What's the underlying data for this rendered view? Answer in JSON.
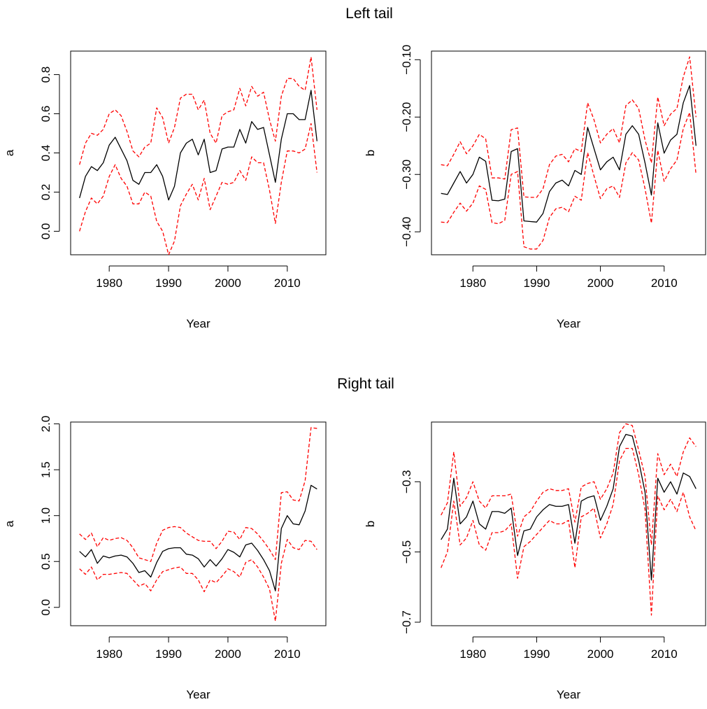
{
  "titles": {
    "top": "Left tail",
    "bottom": "Right tail"
  },
  "chart_data": [
    {
      "type": "line",
      "row_title": "Left tail",
      "xlabel": "Year",
      "ylabel": "a",
      "xlim": [
        1973.5,
        2016.5
      ],
      "ylim": [
        -0.12,
        0.92
      ],
      "xticks": [
        1980,
        1990,
        2000,
        2010
      ],
      "yticks": [
        0.0,
        0.2,
        0.4,
        0.6,
        0.8
      ],
      "ytick_labels": [
        "0.0",
        "0.2",
        "0.4",
        "0.6",
        "0.8"
      ],
      "x": [
        1975,
        1976,
        1977,
        1978,
        1979,
        1980,
        1981,
        1982,
        1983,
        1984,
        1985,
        1986,
        1987,
        1988,
        1989,
        1990,
        1991,
        1992,
        1993,
        1994,
        1995,
        1996,
        1997,
        1998,
        1999,
        2000,
        2001,
        2002,
        2003,
        2004,
        2005,
        2006,
        2007,
        2008,
        2009,
        2010,
        2011,
        2012,
        2013,
        2014,
        2015
      ],
      "series": [
        {
          "role": "estimate",
          "color": "#000000",
          "dash": "solid",
          "values": [
            0.17,
            0.28,
            0.33,
            0.31,
            0.35,
            0.44,
            0.48,
            0.42,
            0.36,
            0.26,
            0.24,
            0.3,
            0.3,
            0.34,
            0.28,
            0.16,
            0.23,
            0.4,
            0.45,
            0.47,
            0.39,
            0.47,
            0.3,
            0.31,
            0.42,
            0.43,
            0.43,
            0.52,
            0.45,
            0.56,
            0.52,
            0.53,
            0.39,
            0.25,
            0.47,
            0.6,
            0.6,
            0.57,
            0.57,
            0.72,
            0.46
          ]
        },
        {
          "role": "upper",
          "color": "#ff0000",
          "dash": "dashed",
          "values": [
            0.34,
            0.45,
            0.5,
            0.49,
            0.52,
            0.6,
            0.62,
            0.59,
            0.51,
            0.41,
            0.38,
            0.43,
            0.45,
            0.63,
            0.58,
            0.45,
            0.53,
            0.68,
            0.7,
            0.7,
            0.62,
            0.67,
            0.5,
            0.45,
            0.59,
            0.61,
            0.62,
            0.73,
            0.64,
            0.74,
            0.69,
            0.71,
            0.57,
            0.46,
            0.69,
            0.78,
            0.78,
            0.74,
            0.72,
            0.89,
            0.62
          ]
        },
        {
          "role": "lower",
          "color": "#ff0000",
          "dash": "dashed",
          "values": [
            0.0,
            0.1,
            0.17,
            0.14,
            0.18,
            0.28,
            0.34,
            0.27,
            0.23,
            0.14,
            0.14,
            0.2,
            0.18,
            0.05,
            0.0,
            -0.12,
            -0.05,
            0.13,
            0.19,
            0.24,
            0.16,
            0.27,
            0.11,
            0.18,
            0.25,
            0.24,
            0.25,
            0.31,
            0.26,
            0.38,
            0.35,
            0.35,
            0.21,
            0.04,
            0.25,
            0.41,
            0.41,
            0.4,
            0.42,
            0.55,
            0.3
          ]
        }
      ]
    },
    {
      "type": "line",
      "row_title": "Left tail",
      "xlabel": "Year",
      "ylabel": "b",
      "xlim": [
        1973.5,
        2016.5
      ],
      "ylim": [
        -0.44,
        -0.085
      ],
      "xticks": [
        1980,
        1990,
        2000,
        2010
      ],
      "yticks": [
        -0.4,
        -0.3,
        -0.2,
        -0.1
      ],
      "ytick_labels": [
        "−0.40",
        "−0.30",
        "−0.20",
        "−0.10"
      ],
      "x": [
        1975,
        1976,
        1977,
        1978,
        1979,
        1980,
        1981,
        1982,
        1983,
        1984,
        1985,
        1986,
        1987,
        1988,
        1989,
        1990,
        1991,
        1992,
        1993,
        1994,
        1995,
        1996,
        1997,
        1998,
        1999,
        2000,
        2001,
        2002,
        2003,
        2004,
        2005,
        2006,
        2007,
        2008,
        2009,
        2010,
        2011,
        2012,
        2013,
        2014,
        2015
      ],
      "series": [
        {
          "role": "estimate",
          "color": "#000000",
          "dash": "solid",
          "values": [
            -0.333,
            -0.335,
            -0.315,
            -0.295,
            -0.315,
            -0.3,
            -0.27,
            -0.277,
            -0.345,
            -0.346,
            -0.343,
            -0.26,
            -0.255,
            -0.381,
            -0.382,
            -0.383,
            -0.368,
            -0.33,
            -0.315,
            -0.31,
            -0.32,
            -0.293,
            -0.3,
            -0.218,
            -0.255,
            -0.292,
            -0.278,
            -0.27,
            -0.292,
            -0.23,
            -0.215,
            -0.23,
            -0.28,
            -0.336,
            -0.21,
            -0.263,
            -0.24,
            -0.23,
            -0.175,
            -0.145,
            -0.25
          ]
        },
        {
          "role": "upper",
          "color": "#ff0000",
          "dash": "dashed",
          "values": [
            -0.283,
            -0.285,
            -0.265,
            -0.243,
            -0.264,
            -0.25,
            -0.23,
            -0.238,
            -0.306,
            -0.306,
            -0.308,
            -0.222,
            -0.219,
            -0.339,
            -0.34,
            -0.34,
            -0.325,
            -0.283,
            -0.268,
            -0.265,
            -0.278,
            -0.255,
            -0.26,
            -0.175,
            -0.205,
            -0.245,
            -0.23,
            -0.22,
            -0.245,
            -0.18,
            -0.17,
            -0.185,
            -0.24,
            -0.28,
            -0.165,
            -0.215,
            -0.195,
            -0.185,
            -0.13,
            -0.095,
            -0.2
          ]
        },
        {
          "role": "lower",
          "color": "#ff0000",
          "dash": "dashed",
          "values": [
            -0.383,
            -0.384,
            -0.366,
            -0.35,
            -0.364,
            -0.35,
            -0.32,
            -0.326,
            -0.384,
            -0.386,
            -0.38,
            -0.3,
            -0.295,
            -0.426,
            -0.43,
            -0.43,
            -0.415,
            -0.375,
            -0.36,
            -0.357,
            -0.365,
            -0.338,
            -0.345,
            -0.262,
            -0.303,
            -0.342,
            -0.325,
            -0.32,
            -0.34,
            -0.28,
            -0.262,
            -0.275,
            -0.325,
            -0.385,
            -0.258,
            -0.312,
            -0.29,
            -0.275,
            -0.22,
            -0.192,
            -0.3
          ]
        }
      ]
    },
    {
      "type": "line",
      "row_title": "Right tail",
      "xlabel": "Year",
      "ylabel": "a",
      "xlim": [
        1973.5,
        2016.5
      ],
      "ylim": [
        -0.2,
        2.02
      ],
      "xticks": [
        1980,
        1990,
        2000,
        2010
      ],
      "yticks": [
        0.0,
        0.5,
        1.0,
        1.5,
        2.0
      ],
      "ytick_labels": [
        "0.0",
        "0.5",
        "1.0",
        "1.5",
        "2.0"
      ],
      "x": [
        1975,
        1976,
        1977,
        1978,
        1979,
        1980,
        1981,
        1982,
        1983,
        1984,
        1985,
        1986,
        1987,
        1988,
        1989,
        1990,
        1991,
        1992,
        1993,
        1994,
        1995,
        1996,
        1997,
        1998,
        1999,
        2000,
        2001,
        2002,
        2003,
        2004,
        2005,
        2006,
        2007,
        2008,
        2009,
        2010,
        2011,
        2012,
        2013,
        2014,
        2015
      ],
      "series": [
        {
          "role": "estimate",
          "color": "#000000",
          "dash": "solid",
          "values": [
            0.61,
            0.55,
            0.63,
            0.48,
            0.56,
            0.54,
            0.56,
            0.57,
            0.55,
            0.48,
            0.38,
            0.4,
            0.33,
            0.49,
            0.61,
            0.64,
            0.65,
            0.65,
            0.58,
            0.57,
            0.53,
            0.44,
            0.52,
            0.45,
            0.53,
            0.63,
            0.6,
            0.55,
            0.68,
            0.7,
            0.62,
            0.52,
            0.4,
            0.18,
            0.86,
            1.0,
            0.91,
            0.9,
            1.05,
            1.33,
            1.29
          ]
        },
        {
          "role": "upper",
          "color": "#ff0000",
          "dash": "dashed",
          "values": [
            0.8,
            0.74,
            0.81,
            0.66,
            0.76,
            0.73,
            0.75,
            0.76,
            0.73,
            0.65,
            0.54,
            0.52,
            0.5,
            0.7,
            0.84,
            0.87,
            0.88,
            0.87,
            0.81,
            0.77,
            0.73,
            0.72,
            0.72,
            0.64,
            0.72,
            0.83,
            0.82,
            0.74,
            0.87,
            0.86,
            0.8,
            0.72,
            0.63,
            0.52,
            1.25,
            1.26,
            1.17,
            1.16,
            1.38,
            1.96,
            1.95
          ]
        },
        {
          "role": "lower",
          "color": "#ff0000",
          "dash": "dashed",
          "values": [
            0.42,
            0.36,
            0.44,
            0.3,
            0.36,
            0.36,
            0.37,
            0.38,
            0.37,
            0.3,
            0.23,
            0.26,
            0.18,
            0.3,
            0.39,
            0.41,
            0.43,
            0.44,
            0.37,
            0.37,
            0.3,
            0.17,
            0.3,
            0.27,
            0.34,
            0.42,
            0.39,
            0.33,
            0.49,
            0.52,
            0.44,
            0.33,
            0.2,
            -0.15,
            0.48,
            0.74,
            0.65,
            0.63,
            0.73,
            0.72,
            0.63
          ]
        }
      ]
    },
    {
      "type": "line",
      "row_title": "Right tail",
      "xlabel": "Year",
      "ylabel": "b",
      "xlim": [
        1973.5,
        2016.5
      ],
      "ylim": [
        -0.71,
        -0.13
      ],
      "xticks": [
        1980,
        1990,
        2000,
        2010
      ],
      "yticks": [
        -0.7,
        -0.5,
        -0.3
      ],
      "ytick_labels": [
        "−0.7",
        "−0.5",
        "−0.3"
      ],
      "x": [
        1975,
        1976,
        1977,
        1978,
        1979,
        1980,
        1981,
        1982,
        1983,
        1984,
        1985,
        1986,
        1987,
        1988,
        1989,
        1990,
        1991,
        1992,
        1993,
        1994,
        1995,
        1996,
        1997,
        1998,
        1999,
        2000,
        2001,
        2002,
        2003,
        2004,
        2005,
        2006,
        2007,
        2008,
        2009,
        2010,
        2011,
        2012,
        2013,
        2014,
        2015
      ],
      "series": [
        {
          "role": "estimate",
          "color": "#000000",
          "dash": "solid",
          "values": [
            -0.465,
            -0.435,
            -0.29,
            -0.42,
            -0.4,
            -0.355,
            -0.42,
            -0.435,
            -0.385,
            -0.385,
            -0.39,
            -0.375,
            -0.51,
            -0.44,
            -0.435,
            -0.4,
            -0.38,
            -0.365,
            -0.37,
            -0.37,
            -0.365,
            -0.475,
            -0.355,
            -0.345,
            -0.34,
            -0.41,
            -0.37,
            -0.32,
            -0.2,
            -0.165,
            -0.17,
            -0.24,
            -0.33,
            -0.58,
            -0.29,
            -0.33,
            -0.3,
            -0.335,
            -0.275,
            -0.285,
            -0.32
          ]
        },
        {
          "role": "upper",
          "color": "#ff0000",
          "dash": "dashed",
          "values": [
            -0.395,
            -0.36,
            -0.215,
            -0.37,
            -0.345,
            -0.3,
            -0.355,
            -0.375,
            -0.34,
            -0.34,
            -0.34,
            -0.335,
            -0.455,
            -0.4,
            -0.385,
            -0.355,
            -0.33,
            -0.32,
            -0.325,
            -0.325,
            -0.32,
            -0.415,
            -0.315,
            -0.305,
            -0.3,
            -0.35,
            -0.32,
            -0.275,
            -0.16,
            -0.135,
            -0.14,
            -0.21,
            -0.285,
            -0.48,
            -0.22,
            -0.28,
            -0.25,
            -0.285,
            -0.215,
            -0.175,
            -0.2
          ]
        },
        {
          "role": "lower",
          "color": "#ff0000",
          "dash": "dashed",
          "values": [
            -0.545,
            -0.5,
            -0.355,
            -0.48,
            -0.46,
            -0.41,
            -0.48,
            -0.495,
            -0.445,
            -0.445,
            -0.44,
            -0.42,
            -0.575,
            -0.485,
            -0.47,
            -0.45,
            -0.43,
            -0.41,
            -0.42,
            -0.42,
            -0.41,
            -0.545,
            -0.4,
            -0.39,
            -0.375,
            -0.46,
            -0.42,
            -0.365,
            -0.24,
            -0.205,
            -0.205,
            -0.28,
            -0.38,
            -0.68,
            -0.34,
            -0.38,
            -0.35,
            -0.385,
            -0.33,
            -0.4,
            -0.44
          ]
        }
      ]
    }
  ]
}
